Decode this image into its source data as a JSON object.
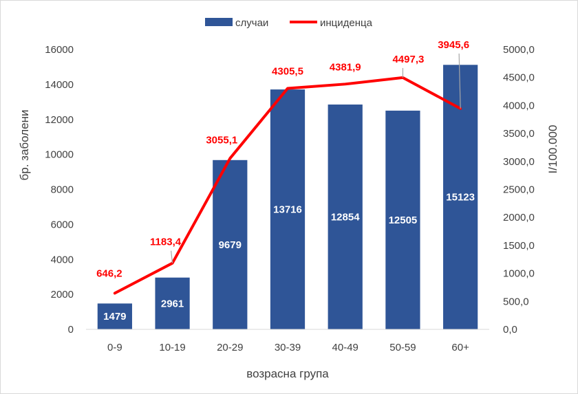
{
  "chart_data": {
    "type": "bar",
    "categories": [
      "0-9",
      "10-19",
      "20-29",
      "30-39",
      "40-49",
      "50-59",
      "60+"
    ],
    "series": [
      {
        "name": "случаи",
        "type": "bar",
        "axis": "left",
        "color": "#2f5597",
        "values": [
          1479,
          2961,
          9679,
          13716,
          12854,
          12505,
          15123
        ],
        "labels": [
          "1479",
          "2961",
          "9679",
          "13716",
          "12854",
          "12505",
          "15123"
        ]
      },
      {
        "name": "инциденца",
        "type": "line",
        "axis": "right",
        "color": "#ff0000",
        "values": [
          646.2,
          1183.4,
          3055.1,
          4305.5,
          4381.9,
          4497.3,
          3945.6
        ],
        "labels": [
          "646,2",
          "1183,4",
          "3055,1",
          "4305,5",
          "4381,9",
          "4497,3",
          "3945,6"
        ]
      }
    ],
    "xlabel": "возрасна група",
    "ylabel": "бр. заболени",
    "y2label": "I/100.000",
    "ylim": [
      0,
      16000
    ],
    "y2lim": [
      0,
      5000
    ],
    "yticks": [
      "0",
      "2000",
      "4000",
      "6000",
      "8000",
      "10000",
      "12000",
      "14000",
      "16000"
    ],
    "y2ticks": [
      "0,0",
      "500,0",
      "1000,0",
      "1500,0",
      "2000,0",
      "2500,0",
      "3000,0",
      "3500,0",
      "4000,0",
      "4500,0",
      "5000,0"
    ],
    "grid": false,
    "legend": "top"
  }
}
